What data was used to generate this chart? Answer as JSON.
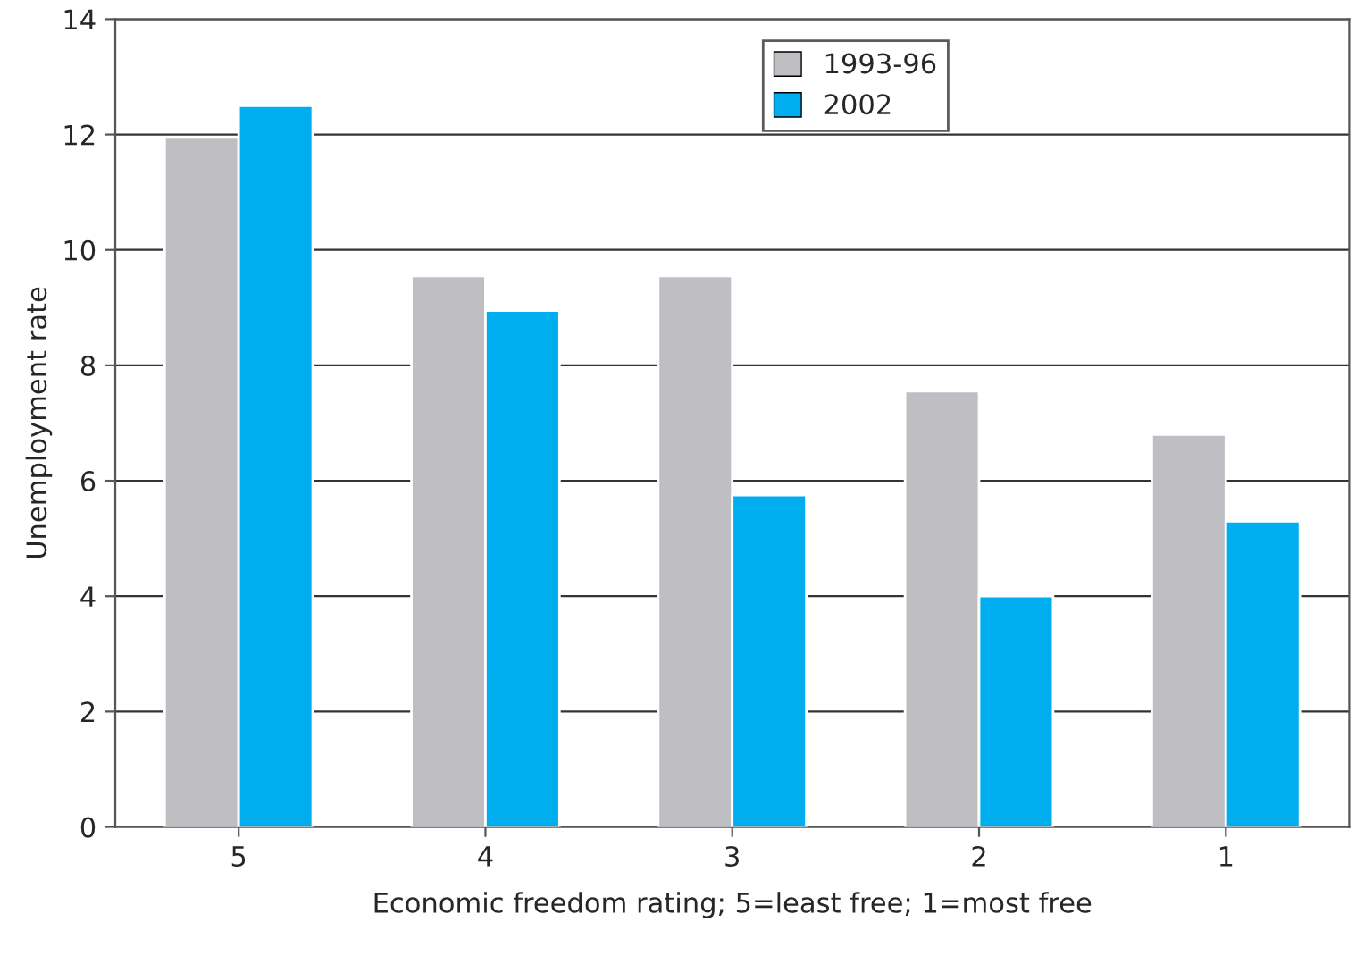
{
  "chart_data": {
    "type": "bar",
    "xlabel": "Economic freedom rating; 5=least free; 1=most free",
    "ylabel": "Unemployment rate",
    "categories": [
      "5",
      "4",
      "3",
      "2",
      "1"
    ],
    "series": [
      {
        "name": "1993-96",
        "color": "#bfbfc3",
        "values": [
          11.95,
          9.55,
          9.55,
          7.55,
          6.8
        ]
      },
      {
        "name": "2002",
        "color": "#00aeef",
        "values": [
          12.5,
          8.95,
          5.75,
          4.0,
          5.3
        ]
      }
    ],
    "ylim": [
      0,
      14
    ],
    "yticks": [
      0,
      2,
      4,
      6,
      8,
      10,
      12,
      14
    ],
    "grid": "y",
    "legend": "top"
  }
}
